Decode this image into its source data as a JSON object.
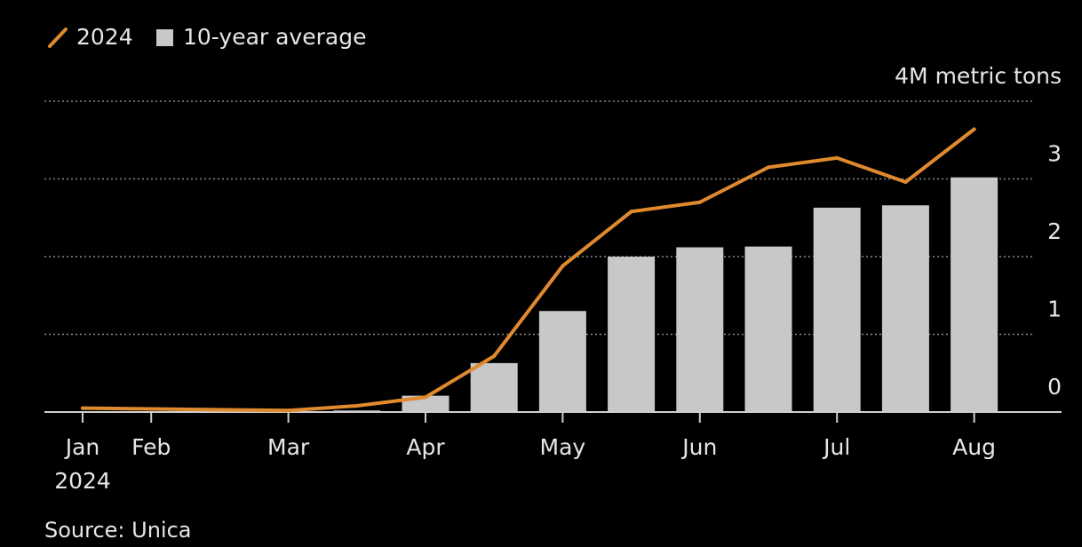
{
  "legend": {
    "line_label": "2024",
    "bar_label": "10-year average"
  },
  "unit_label": "4M metric tons",
  "source": "Source: Unica",
  "colors": {
    "background": "#000000",
    "line": "#e08a2e",
    "bar": "#c8c8c8",
    "text": "#e6e6e6",
    "grid": "#8a8a8a"
  },
  "chart_data": {
    "type": "bar",
    "title": "",
    "xlabel": "",
    "ylabel": "",
    "unit": "4M metric tons",
    "ylim": [
      0,
      4
    ],
    "yticks": [
      0,
      1,
      2,
      3
    ],
    "grid": true,
    "legend_position": "top-left",
    "x_ticks": [
      {
        "label": "Jan",
        "sublabel": "2024",
        "period": 0
      },
      {
        "label": "Feb",
        "period": 1
      },
      {
        "label": "Mar",
        "period": 3
      },
      {
        "label": "Apr",
        "period": 5
      },
      {
        "label": "May",
        "period": 7
      },
      {
        "label": "Jun",
        "period": 9
      },
      {
        "label": "Jul",
        "period": 11
      },
      {
        "label": "Aug",
        "period": 13
      }
    ],
    "series": [
      {
        "name": "10-year average",
        "type": "bar",
        "color": "#c8c8c8",
        "points": [
          {
            "period": 4,
            "value": 0.02
          },
          {
            "period": 5,
            "value": 0.21
          },
          {
            "period": 6,
            "value": 0.63
          },
          {
            "period": 7,
            "value": 1.3
          },
          {
            "period": 8,
            "value": 2.0
          },
          {
            "period": 9,
            "value": 2.12
          },
          {
            "period": 10,
            "value": 2.13
          },
          {
            "period": 11,
            "value": 2.63
          },
          {
            "period": 12,
            "value": 2.66
          },
          {
            "period": 13,
            "value": 3.02
          }
        ]
      },
      {
        "name": "2024",
        "type": "line",
        "color": "#e08a2e",
        "points": [
          {
            "period": 0,
            "value": 0.05
          },
          {
            "period": 1,
            "value": 0.04
          },
          {
            "period": 3,
            "value": 0.02
          },
          {
            "period": 4,
            "value": 0.08
          },
          {
            "period": 5,
            "value": 0.19
          },
          {
            "period": 6,
            "value": 0.72
          },
          {
            "period": 7,
            "value": 1.88
          },
          {
            "period": 8,
            "value": 2.58
          },
          {
            "period": 9,
            "value": 2.7
          },
          {
            "period": 10,
            "value": 3.15
          },
          {
            "period": 11,
            "value": 3.27
          },
          {
            "period": 12,
            "value": 2.96
          },
          {
            "period": 13,
            "value": 3.64
          }
        ]
      }
    ]
  }
}
